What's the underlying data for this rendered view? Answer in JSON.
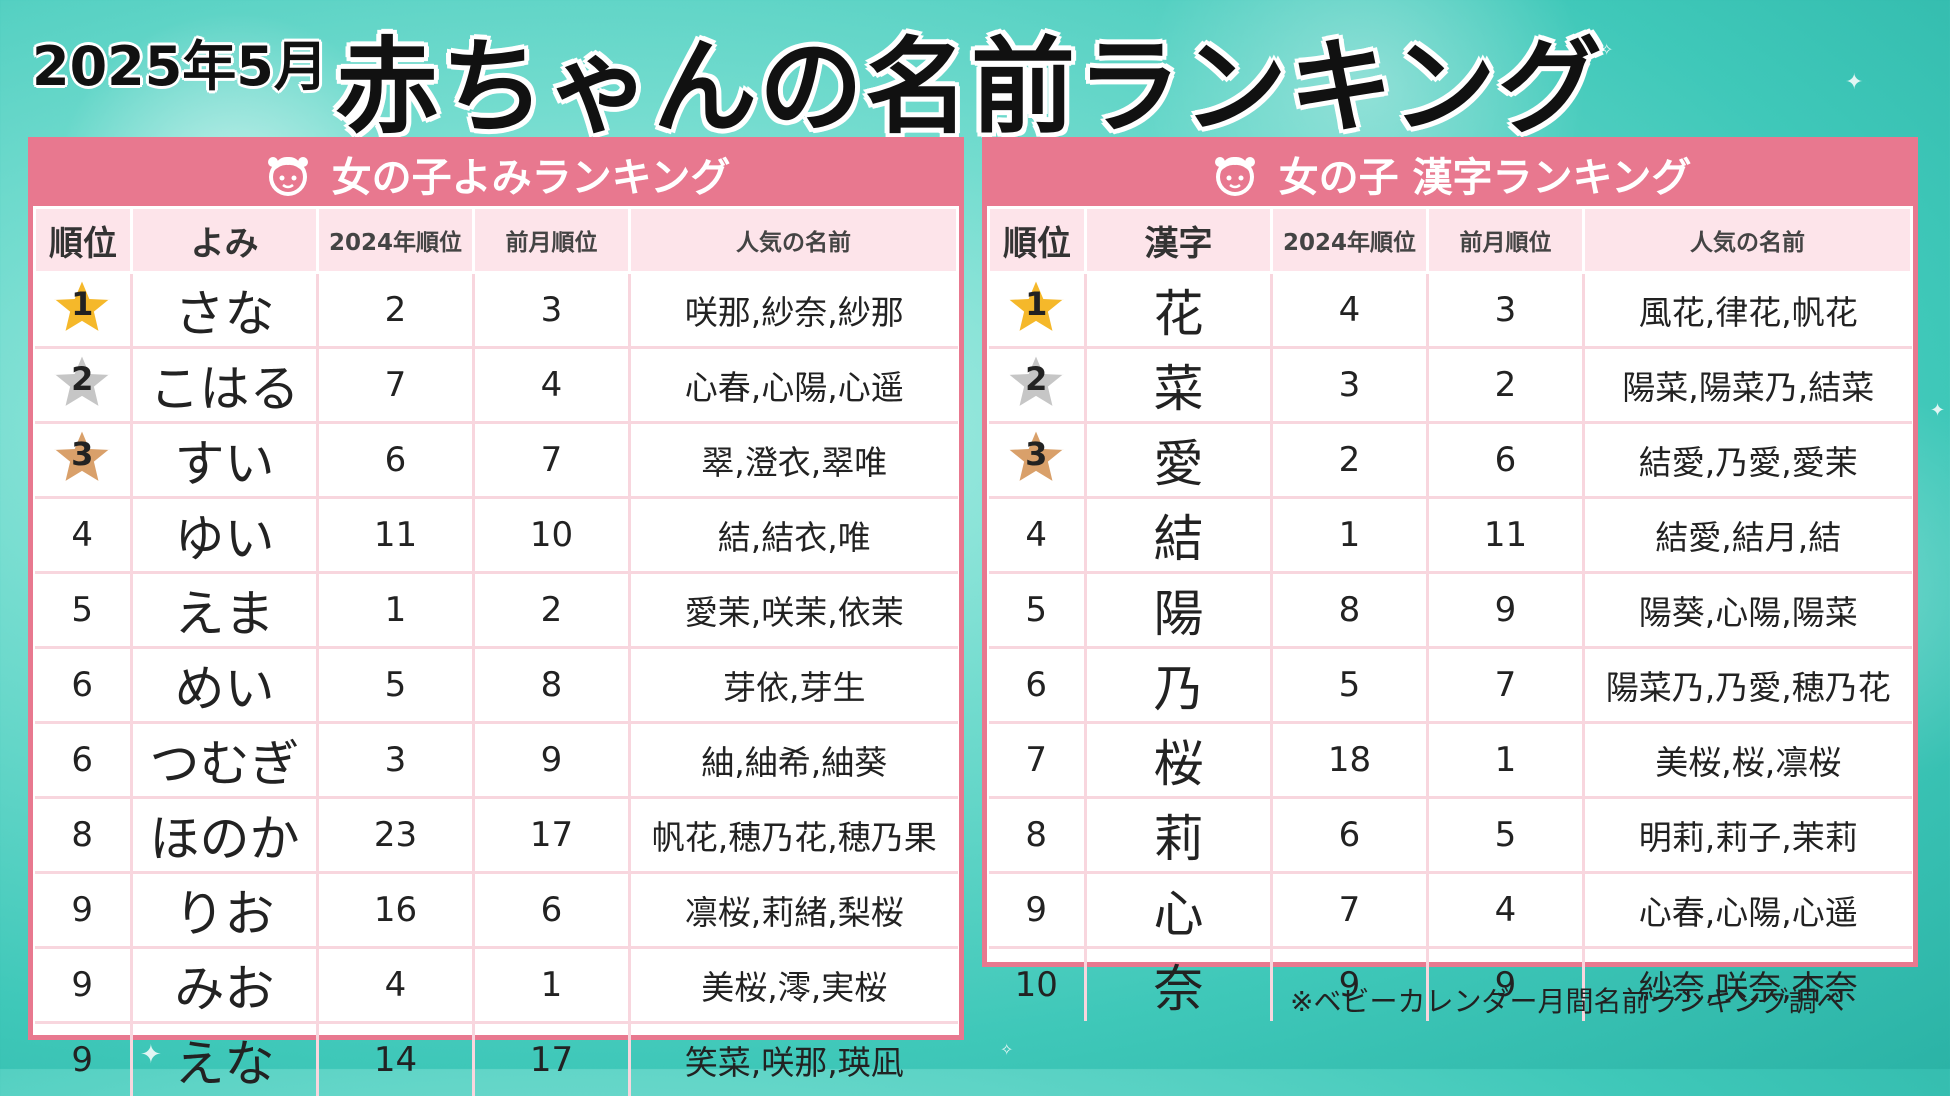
{
  "header": {
    "date": "2025年5月",
    "title": "赤ちゃんの名前ランキング"
  },
  "left": {
    "title": "女の子よみランキング",
    "headers": [
      "順位",
      "よみ",
      "2024年順位",
      "前月順位",
      "人気の名前"
    ],
    "rows": [
      {
        "rank": "1",
        "name": "さな",
        "y2024": "2",
        "prev": "3",
        "popular": "咲那,紗奈,紗那"
      },
      {
        "rank": "2",
        "name": "こはる",
        "y2024": "7",
        "prev": "4",
        "popular": "心春,心陽,心遥"
      },
      {
        "rank": "3",
        "name": "すい",
        "y2024": "6",
        "prev": "7",
        "popular": "翠,澄衣,翠唯"
      },
      {
        "rank": "4",
        "name": "ゆい",
        "y2024": "11",
        "prev": "10",
        "popular": "結,結衣,唯"
      },
      {
        "rank": "5",
        "name": "えま",
        "y2024": "1",
        "prev": "2",
        "popular": "愛茉,咲茉,依茉"
      },
      {
        "rank": "6",
        "name": "めい",
        "y2024": "5",
        "prev": "8",
        "popular": "芽依,芽生"
      },
      {
        "rank": "6",
        "name": "つむぎ",
        "y2024": "3",
        "prev": "9",
        "popular": "紬,紬希,紬葵"
      },
      {
        "rank": "8",
        "name": "ほのか",
        "y2024": "23",
        "prev": "17",
        "popular": "帆花,穂乃花,穂乃果"
      },
      {
        "rank": "9",
        "name": "りお",
        "y2024": "16",
        "prev": "6",
        "popular": "凛桜,莉緒,梨桜"
      },
      {
        "rank": "9",
        "name": "みお",
        "y2024": "4",
        "prev": "1",
        "popular": "美桜,澪,実桜"
      },
      {
        "rank": "9",
        "name": "えな",
        "y2024": "14",
        "prev": "17",
        "popular": "笑菜,咲那,瑛凪"
      }
    ]
  },
  "right": {
    "title": "女の子 漢字ランキング",
    "headers": [
      "順位",
      "漢字",
      "2024年順位",
      "前月順位",
      "人気の名前"
    ],
    "rows": [
      {
        "rank": "1",
        "name": "花",
        "y2024": "4",
        "prev": "3",
        "popular": "風花,律花,帆花"
      },
      {
        "rank": "2",
        "name": "菜",
        "y2024": "3",
        "prev": "2",
        "popular": "陽菜,陽菜乃,結菜"
      },
      {
        "rank": "3",
        "name": "愛",
        "y2024": "2",
        "prev": "6",
        "popular": "結愛,乃愛,愛茉"
      },
      {
        "rank": "4",
        "name": "結",
        "y2024": "1",
        "prev": "11",
        "popular": "結愛,結月,結"
      },
      {
        "rank": "5",
        "name": "陽",
        "y2024": "8",
        "prev": "9",
        "popular": "陽葵,心陽,陽菜"
      },
      {
        "rank": "6",
        "name": "乃",
        "y2024": "5",
        "prev": "7",
        "popular": "陽菜乃,乃愛,穂乃花"
      },
      {
        "rank": "7",
        "name": "桜",
        "y2024": "18",
        "prev": "1",
        "popular": "美桜,桜,凛桜"
      },
      {
        "rank": "8",
        "name": "莉",
        "y2024": "6",
        "prev": "5",
        "popular": "明莉,莉子,茉莉"
      },
      {
        "rank": "9",
        "name": "心",
        "y2024": "7",
        "prev": "4",
        "popular": "心春,心陽,心遥"
      },
      {
        "rank": "10",
        "name": "奈",
        "y2024": "9",
        "prev": "9",
        "popular": "紗奈,咲奈,杏奈"
      }
    ]
  },
  "note": "※ベビーカレンダー月間名前ランキング調べ",
  "colors": {
    "accent": "#e8788f",
    "header_bg": "#fde4ea",
    "gold": "#f5b82a",
    "silver": "#c6c6c6",
    "bronze": "#d9a06a"
  },
  "icons": {
    "panel_icon": "girl-face-icon",
    "medal_icon": "star-icon"
  }
}
